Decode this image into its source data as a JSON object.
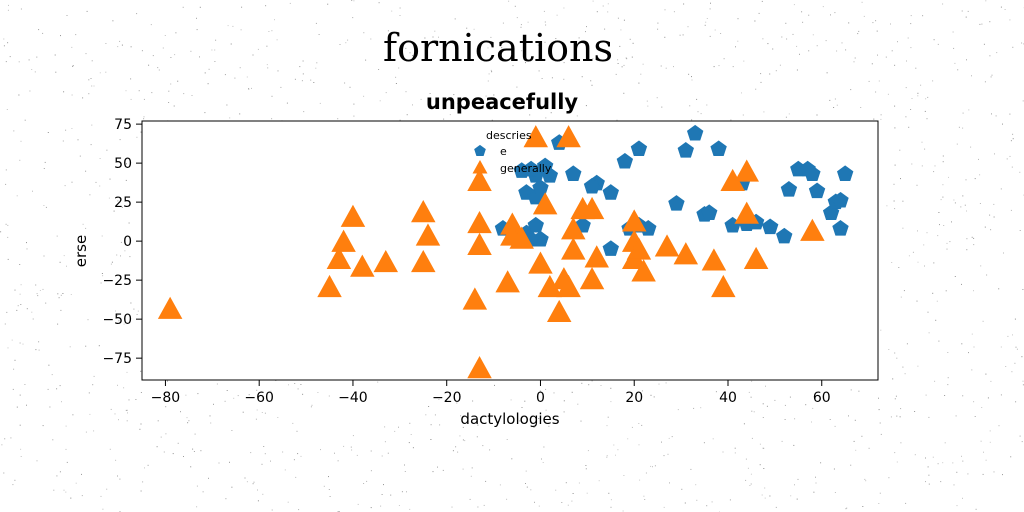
{
  "chart_data": {
    "type": "scatter",
    "suptitle": "fornications",
    "title": "unpeacefully",
    "xlabel": "dactylologies",
    "ylabel": "erse",
    "xlim": [
      -85,
      72
    ],
    "ylim": [
      -89,
      77
    ],
    "xticks": [
      -80,
      -60,
      -40,
      -20,
      0,
      20,
      40,
      60
    ],
    "yticks": [
      -75,
      -50,
      -25,
      0,
      25,
      50,
      75
    ],
    "grid": false,
    "legend": {
      "title": "descries",
      "placement": "top-center"
    },
    "series": [
      {
        "name": "e",
        "marker": "pentagon",
        "color": "#1f77b4",
        "points": [
          [
            -4,
            45
          ],
          [
            -1,
            42
          ],
          [
            2,
            42
          ],
          [
            -3,
            31
          ],
          [
            -1,
            28
          ],
          [
            0,
            34
          ],
          [
            1,
            48
          ],
          [
            -2,
            46
          ],
          [
            4,
            63
          ],
          [
            7,
            43
          ],
          [
            9,
            10
          ],
          [
            12,
            37
          ],
          [
            15,
            31
          ],
          [
            18,
            51
          ],
          [
            21,
            59
          ],
          [
            19,
            8
          ],
          [
            23,
            8
          ],
          [
            15,
            -5
          ],
          [
            21,
            10
          ],
          [
            -8,
            8
          ],
          [
            -3,
            5
          ],
          [
            -1,
            10
          ],
          [
            0,
            1
          ],
          [
            29,
            24
          ],
          [
            31,
            58
          ],
          [
            33,
            69
          ],
          [
            35,
            17
          ],
          [
            36,
            18
          ],
          [
            38,
            59
          ],
          [
            41,
            10
          ],
          [
            44,
            11
          ],
          [
            46,
            12
          ],
          [
            49,
            9
          ],
          [
            52,
            3
          ],
          [
            53,
            33
          ],
          [
            55,
            46
          ],
          [
            57,
            46
          ],
          [
            58,
            43
          ],
          [
            59,
            32
          ],
          [
            62,
            18
          ],
          [
            63,
            25
          ],
          [
            64,
            26
          ],
          [
            64,
            8
          ],
          [
            65,
            43
          ],
          [
            43,
            37
          ],
          [
            0,
            1
          ],
          [
            -2,
            1
          ],
          [
            11,
            35
          ]
        ]
      },
      {
        "name": "generally",
        "marker": "triangle",
        "color": "#ff7f0e",
        "points": [
          [
            -79,
            -44
          ],
          [
            -45,
            -30
          ],
          [
            -43,
            -12
          ],
          [
            -42,
            -1
          ],
          [
            -40,
            15
          ],
          [
            -38,
            -17
          ],
          [
            -33,
            -14
          ],
          [
            -25,
            -14
          ],
          [
            -25,
            18
          ],
          [
            -24,
            3
          ],
          [
            -14,
            -38
          ],
          [
            -13,
            -3
          ],
          [
            -13,
            11
          ],
          [
            -13,
            38
          ],
          [
            -13,
            -82
          ],
          [
            -7,
            -27
          ],
          [
            -6,
            10
          ],
          [
            -6,
            3
          ],
          [
            -4,
            1
          ],
          [
            -1,
            66
          ],
          [
            0,
            -15
          ],
          [
            1,
            23
          ],
          [
            2,
            -30
          ],
          [
            4,
            -46
          ],
          [
            5,
            -25
          ],
          [
            6,
            -30
          ],
          [
            6,
            66
          ],
          [
            7,
            -6
          ],
          [
            7,
            7
          ],
          [
            9,
            20
          ],
          [
            11,
            20
          ],
          [
            11,
            -25
          ],
          [
            12,
            -11
          ],
          [
            20,
            12
          ],
          [
            20,
            -1
          ],
          [
            20,
            -12
          ],
          [
            21,
            -6
          ],
          [
            22,
            -20
          ],
          [
            27,
            -4
          ],
          [
            31,
            -9
          ],
          [
            37,
            -13
          ],
          [
            39,
            -30
          ],
          [
            41,
            38
          ],
          [
            44,
            44
          ],
          [
            44,
            17
          ],
          [
            46,
            -12
          ],
          [
            58,
            6
          ]
        ]
      }
    ]
  }
}
